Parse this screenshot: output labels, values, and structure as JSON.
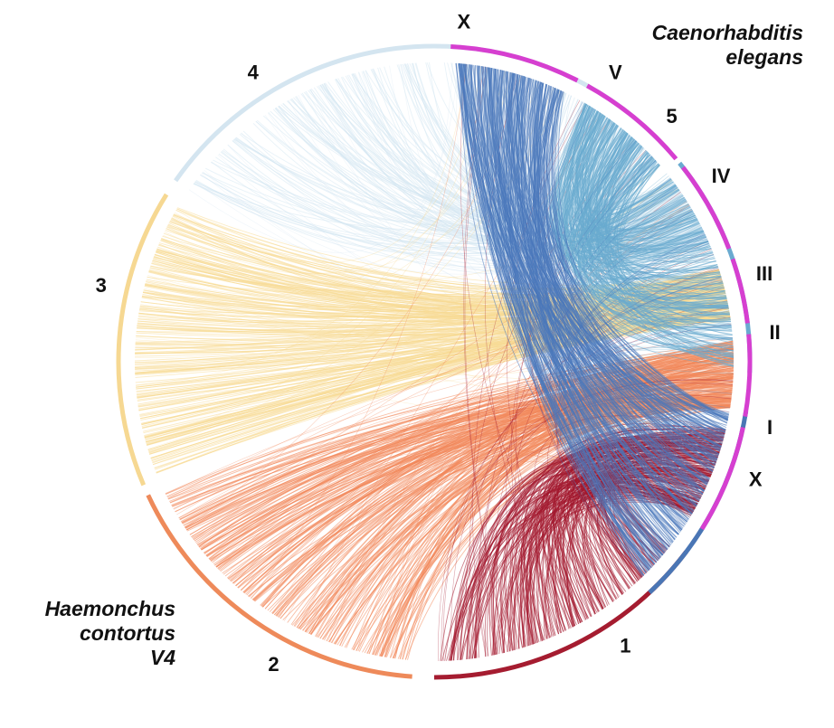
{
  "species": {
    "elegans": {
      "line1": "Caenorhabditis",
      "line2": "elegans"
    },
    "contortus": {
      "line1": "Haemonchus",
      "line2": "contortus",
      "line3": "V4"
    }
  },
  "chromosomes": {
    "elegans": [
      {
        "label": "X",
        "color": "#d63fd0"
      },
      {
        "label": "V",
        "color": "#d63fd0"
      },
      {
        "label": "IV",
        "color": "#d63fd0"
      },
      {
        "label": "III",
        "color": "#d63fd0"
      },
      {
        "label": "II",
        "color": "#d63fd0"
      },
      {
        "label": "I",
        "color": "#d63fd0"
      }
    ],
    "contortus": [
      {
        "label": "1",
        "color": "#a51c30"
      },
      {
        "label": "2",
        "color": "#ee8a5a"
      },
      {
        "label": "3",
        "color": "#f6d892"
      },
      {
        "label": "4",
        "color": "#d4e5f0"
      },
      {
        "label": "5",
        "color": "#6aaad0"
      },
      {
        "label": "X",
        "color": "#4a76b5"
      }
    ]
  },
  "link_colors": {
    "1": "#a3152b",
    "2": "#f3885b",
    "3": "#f8da94",
    "4": "#d6e7f2",
    "5": "#6aaccf",
    "X": "#4a78bb"
  }
}
